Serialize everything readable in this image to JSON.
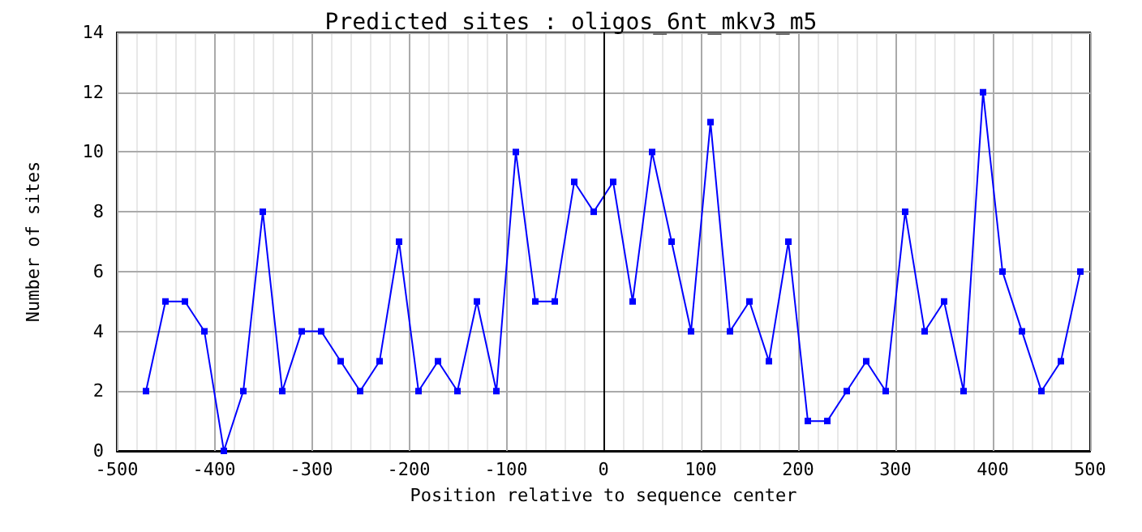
{
  "chart_data": {
    "type": "line",
    "title": "Predicted sites : oligos_6nt_mkv3_m5",
    "xlabel": "Position relative to sequence center",
    "ylabel": "Number of sites",
    "x": [
      -470,
      -450,
      -430,
      -410,
      -390,
      -370,
      -350,
      -330,
      -310,
      -290,
      -270,
      -250,
      -230,
      -210,
      -190,
      -170,
      -150,
      -130,
      -110,
      -90,
      -70,
      -50,
      -30,
      -10,
      10,
      30,
      50,
      70,
      90,
      110,
      130,
      150,
      170,
      190,
      210,
      230,
      250,
      270,
      290,
      310,
      330,
      350,
      370,
      390,
      410,
      430,
      450,
      470,
      490
    ],
    "series": [
      {
        "color": "#0000ff",
        "values": [
          2,
          5,
          5,
          4,
          0,
          2,
          8,
          2,
          4,
          4,
          3,
          2,
          3,
          7,
          2,
          3,
          2,
          5,
          2,
          10,
          5,
          5,
          9,
          8,
          9,
          5,
          10,
          7,
          4,
          11,
          4,
          5,
          3,
          7,
          1,
          1,
          2,
          3,
          2,
          8,
          4,
          5,
          2,
          12,
          6,
          4,
          2,
          3,
          6
        ]
      }
    ],
    "xlim": [
      -500,
      500
    ],
    "xticks": [
      -500,
      -400,
      -300,
      -200,
      -100,
      0,
      100,
      200,
      300,
      400,
      500
    ],
    "ylim": [
      0,
      14
    ],
    "yticks": [
      0,
      2,
      4,
      6,
      8,
      10,
      12,
      14
    ],
    "grid": true,
    "marker": "square",
    "line_style": "solid",
    "ref_lines": [
      {
        "axis": "x",
        "value": 0,
        "color": "#000000"
      }
    ]
  }
}
